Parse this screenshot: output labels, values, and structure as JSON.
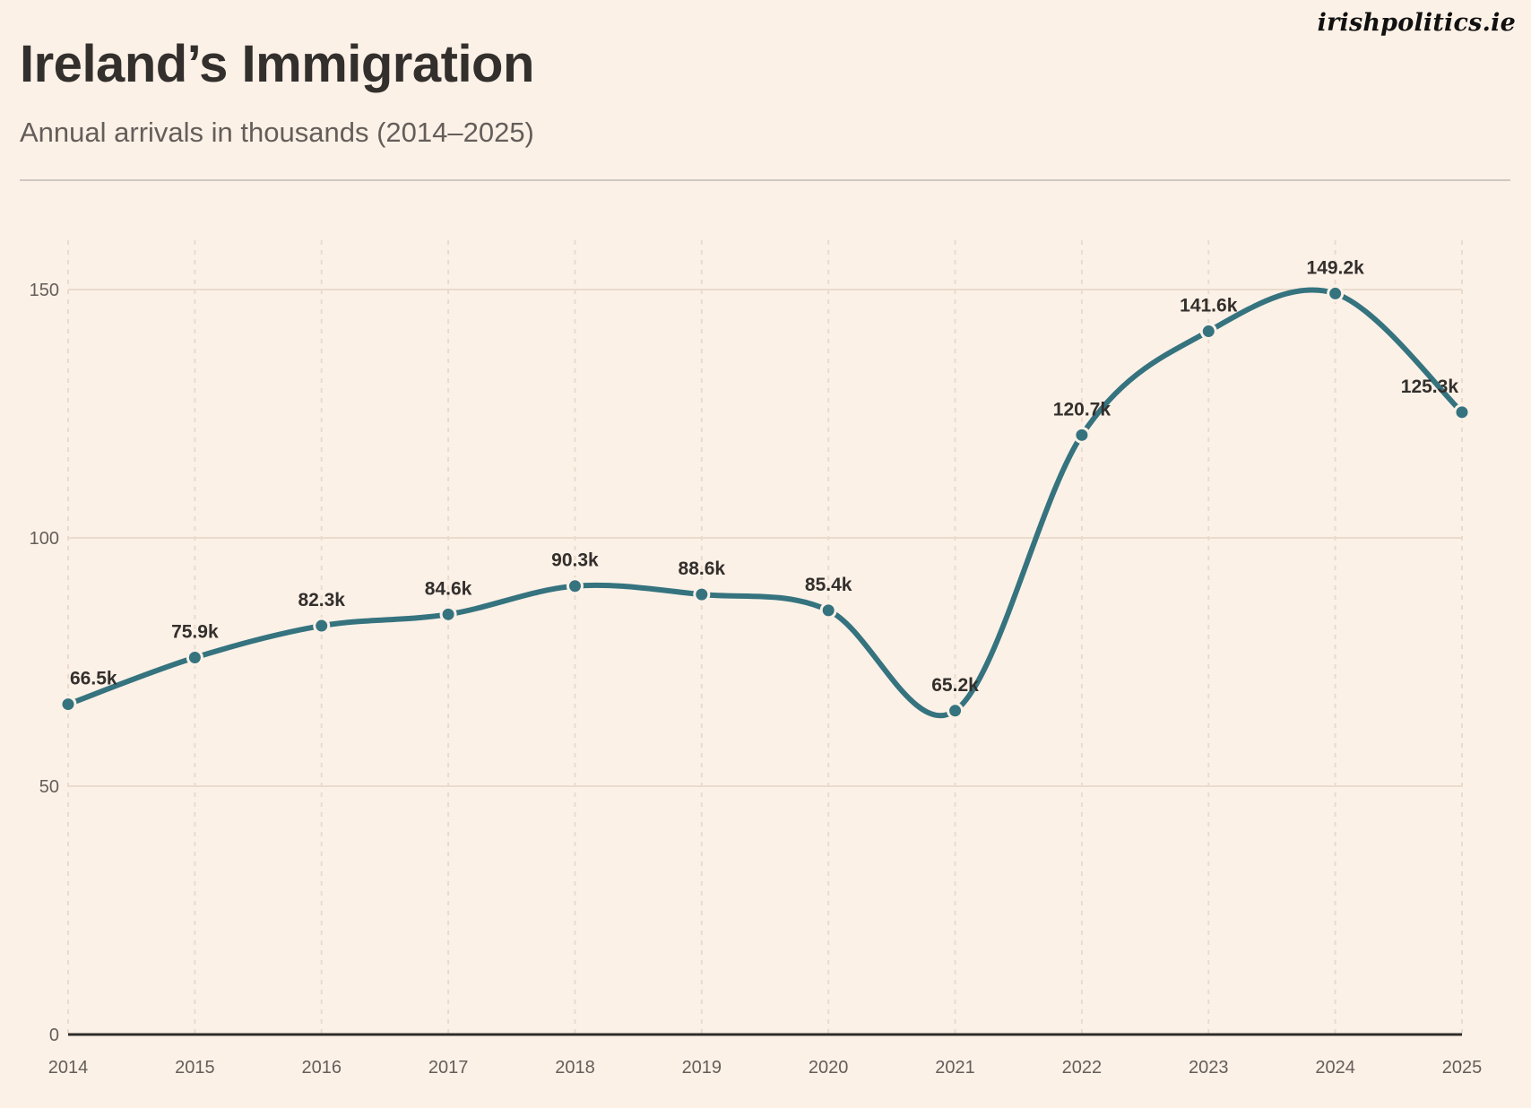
{
  "brand": {
    "name": "irishpolitics.ie"
  },
  "header": {
    "title": "Ireland’s Immigration",
    "subtitle": "Annual arrivals in thousands (2014–2025)"
  },
  "colors": {
    "background": "#fcf1e7",
    "line": "#35737f",
    "text": "#332f2c",
    "muted": "#645e5a",
    "grid": "#eadbcc"
  },
  "chart_data": {
    "type": "line",
    "title": "Ireland’s Immigration",
    "subtitle": "Annual arrivals in thousands (2014–2025)",
    "xlabel": "",
    "ylabel": "",
    "x": [
      "2014",
      "2015",
      "2016",
      "2017",
      "2018",
      "2019",
      "2020",
      "2021",
      "2022",
      "2023",
      "2024",
      "2025"
    ],
    "series": [
      {
        "name": "Annual arrivals (thousands)",
        "values": [
          66.5,
          75.9,
          82.3,
          84.6,
          90.3,
          88.6,
          85.4,
          65.2,
          120.7,
          141.6,
          149.2,
          125.3
        ],
        "labels": [
          "66.5k",
          "75.9k",
          "82.3k",
          "84.6k",
          "90.3k",
          "88.6k",
          "85.4k",
          "65.2k",
          "120.7k",
          "141.6k",
          "149.2k",
          "125.3k"
        ]
      }
    ],
    "ylim": [
      0,
      160
    ],
    "yticks": [
      0,
      50,
      100,
      150
    ],
    "ytick_labels": [
      "0",
      "50",
      "100",
      "150"
    ],
    "grid": {
      "horizontal": "solid",
      "vertical": "dashed"
    },
    "curve": "smooth",
    "markers": true,
    "legend": "none"
  }
}
